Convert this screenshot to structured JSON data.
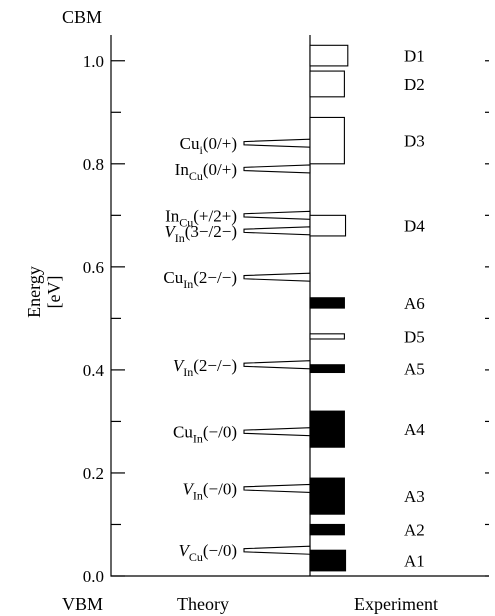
{
  "chart_data": {
    "type": "bar",
    "top_label": "CBM",
    "bottom_label": "VBM",
    "ylabel": "Energy",
    "ylabel_unit": "[eV]",
    "ylim": [
      0.0,
      1.05
    ],
    "y_ticks": [
      {
        "value": 0.0,
        "label": "0.0"
      },
      {
        "value": 0.2,
        "label": "0.2"
      },
      {
        "value": 0.4,
        "label": "0.4"
      },
      {
        "value": 0.6,
        "label": "0.6"
      },
      {
        "value": 0.8,
        "label": "0.8"
      },
      {
        "value": 1.0,
        "label": "1.0"
      }
    ],
    "minor_ticks": [
      0.1,
      0.3,
      0.5,
      0.7,
      0.9
    ],
    "panels": {
      "theory": "Theory",
      "experiment": "Experiment"
    },
    "theory_levels": [
      {
        "id": "cu-i-0-plus",
        "energy": 0.84,
        "base": "Cu",
        "sub": "i",
        "charge": "(0/+)",
        "italic": false
      },
      {
        "id": "in-cu-0-plus",
        "energy": 0.79,
        "base": "In",
        "sub": "Cu",
        "charge": "(0/+)",
        "italic": false
      },
      {
        "id": "in-cu-plus-2plus",
        "energy": 0.7,
        "base": "In",
        "sub": "Cu",
        "charge": "(+/2+)",
        "italic": false
      },
      {
        "id": "v-in-3-2",
        "energy": 0.67,
        "base": "V",
        "sub": "In",
        "charge": "(3−/2−)",
        "italic": true
      },
      {
        "id": "cu-in-2-1",
        "energy": 0.58,
        "base": "Cu",
        "sub": "In",
        "charge": "(2−/−)",
        "italic": false
      },
      {
        "id": "v-in-2-1",
        "energy": 0.41,
        "base": "V",
        "sub": "In",
        "charge": "(2−/−)",
        "italic": true
      },
      {
        "id": "cu-in-1-0",
        "energy": 0.28,
        "base": "Cu",
        "sub": "In",
        "charge": "(−/0)",
        "italic": false
      },
      {
        "id": "v-in-1-0",
        "energy": 0.17,
        "base": "V",
        "sub": "In",
        "charge": "(−/0)",
        "italic": true
      },
      {
        "id": "v-cu-1-0",
        "energy": 0.05,
        "base": "V",
        "sub": "Cu",
        "charge": "(−/0)",
        "italic": true
      }
    ],
    "experiment_levels": [
      {
        "label": "D1",
        "low": 0.99,
        "high": 1.03,
        "filled": false,
        "width": 0.1
      },
      {
        "label": "D2",
        "low": 0.93,
        "high": 0.98,
        "filled": false,
        "width": 0.091
      },
      {
        "label": "D3",
        "low": 0.8,
        "high": 0.89,
        "filled": false,
        "width": 0.091
      },
      {
        "label": "D4",
        "low": 0.66,
        "high": 0.7,
        "filled": false,
        "width": 0.094
      },
      {
        "label": "A6",
        "low": 0.52,
        "high": 0.54,
        "filled": true,
        "width": 0.091
      },
      {
        "label": "D5",
        "low": 0.46,
        "high": 0.47,
        "filled": false,
        "width": 0.091
      },
      {
        "label": "A5",
        "low": 0.395,
        "high": 0.41,
        "filled": true,
        "width": 0.091
      },
      {
        "label": "A4",
        "low": 0.25,
        "high": 0.32,
        "filled": true,
        "width": 0.091
      },
      {
        "label": "A3",
        "low": 0.12,
        "high": 0.19,
        "filled": true,
        "width": 0.091
      },
      {
        "label": "A2",
        "low": 0.08,
        "high": 0.1,
        "filled": true,
        "width": 0.091
      },
      {
        "label": "A1",
        "low": 0.01,
        "high": 0.05,
        "filled": true,
        "width": 0.094
      }
    ]
  }
}
